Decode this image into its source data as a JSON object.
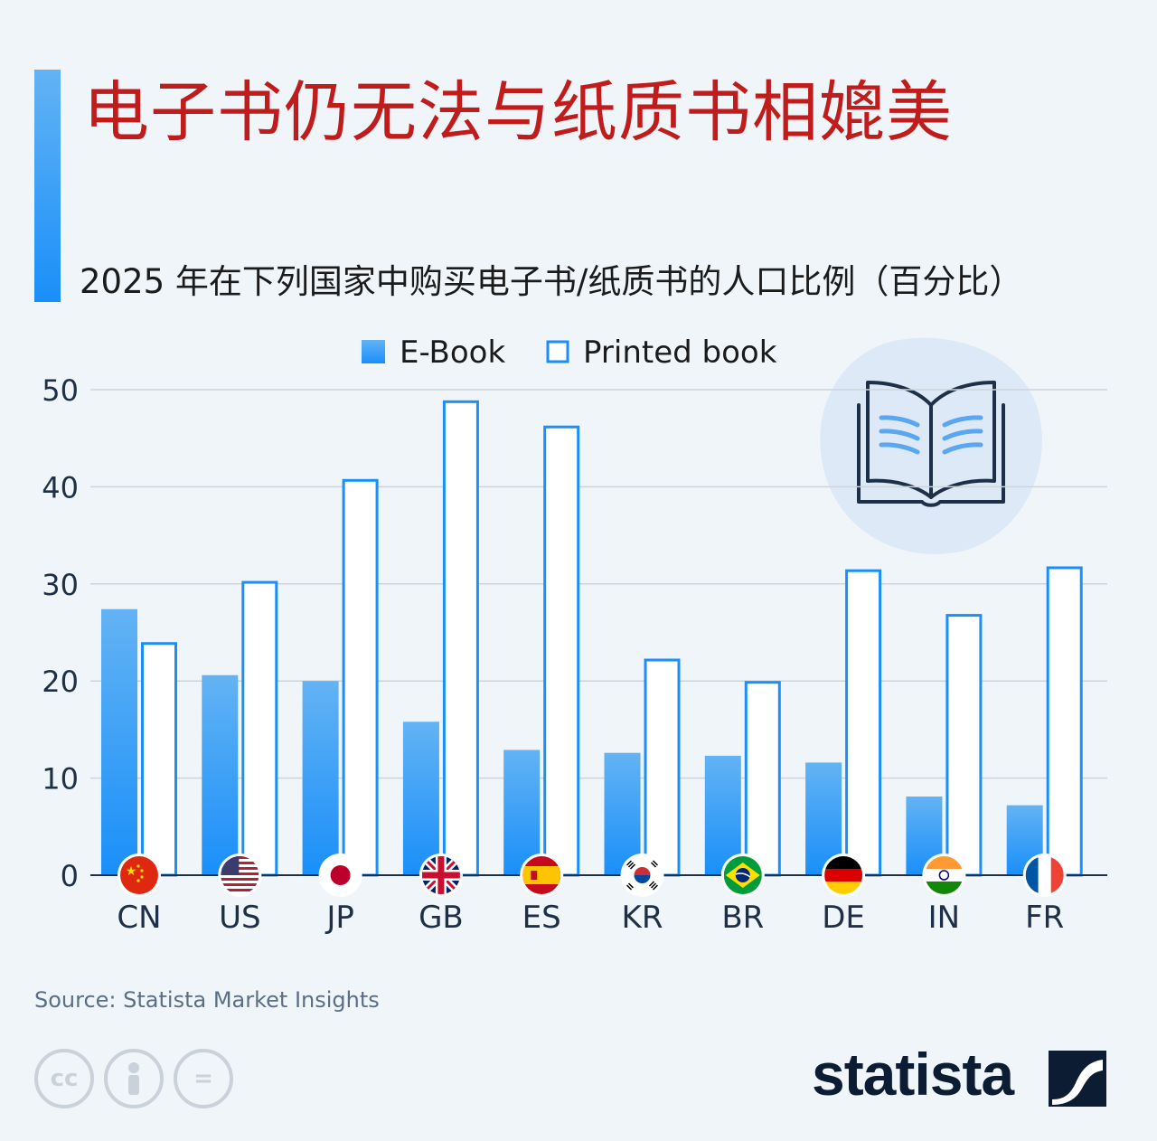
{
  "header": {
    "title": "电子书仍无法与纸质书相媲美",
    "subtitle": "2025 年在下列国家中购买电子书/纸质书的人口比例（百分比）"
  },
  "chart_data": {
    "type": "bar",
    "categories": [
      "CN",
      "US",
      "JP",
      "GB",
      "ES",
      "KR",
      "BR",
      "DE",
      "IN",
      "FR"
    ],
    "series": [
      {
        "name": "E-Book",
        "values": [
          27.4,
          20.6,
          20.0,
          15.8,
          12.9,
          12.6,
          12.3,
          11.6,
          8.1,
          7.2
        ]
      },
      {
        "name": "Printed book",
        "values": [
          24.0,
          30.3,
          40.8,
          48.9,
          46.3,
          22.3,
          20.0,
          31.5,
          26.9,
          31.8
        ]
      }
    ],
    "yticks": [
      "0",
      "10",
      "20",
      "30",
      "40",
      "50"
    ],
    "ylim": [
      0,
      50
    ],
    "grid": true,
    "legend_position": "top-center"
  },
  "colors": {
    "ebook_top": "#63b3f4",
    "ebook_bottom": "#1a8ff9",
    "printed_stroke": "#1a8ff9",
    "printed_fill": "#ffffff",
    "gridline": "#cdd4dc",
    "title": "#c01c1c"
  },
  "flags": [
    "cn-flag-icon",
    "us-flag-icon",
    "jp-flag-icon",
    "gb-flag-icon",
    "es-flag-icon",
    "kr-flag-icon",
    "br-flag-icon",
    "de-flag-icon",
    "in-flag-icon",
    "fr-flag-icon"
  ],
  "decoration": {
    "icon": "open-book-icon"
  },
  "footer": {
    "source": "Source: Statista Market Insights",
    "license_icons": [
      "cc-icon",
      "attribution-icon",
      "no-derivatives-icon"
    ],
    "cc_label": "cc",
    "nd_label": "=",
    "brand": "statista"
  }
}
